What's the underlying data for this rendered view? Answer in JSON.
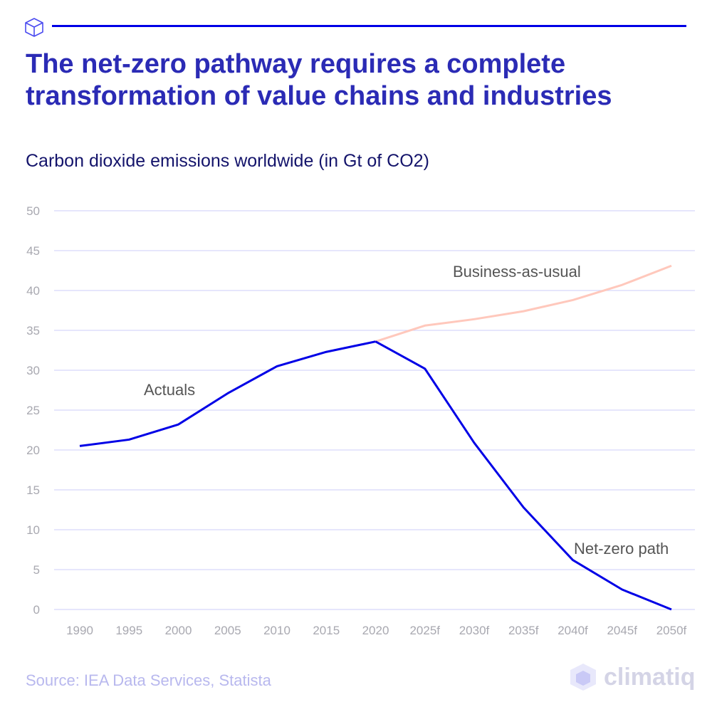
{
  "header": {
    "title": "The net-zero pathway requires a complete transformation of value chains and industries",
    "subtitle": "Carbon dioxide emissions worldwide (in Gt of CO2)",
    "icon": "cube-icon"
  },
  "footer": {
    "source": "Source: IEA Data Services, Statista",
    "logo_text": "climatiq"
  },
  "chart_data": {
    "type": "line",
    "title": "Carbon dioxide emissions worldwide (in Gt of CO2)",
    "categories": [
      "1990",
      "1995",
      "2000",
      "2005",
      "2010",
      "2015",
      "2020",
      "2025f",
      "2030f",
      "2035f",
      "2040f",
      "2045f",
      "2050f"
    ],
    "ylim": [
      0,
      50
    ],
    "yticks": [
      0,
      5,
      10,
      15,
      20,
      25,
      30,
      35,
      40,
      45,
      50
    ],
    "grid": true,
    "series": [
      {
        "name": "Actuals",
        "color": "#0000e6",
        "values": [
          20.5,
          21.3,
          23.2,
          27.1,
          30.5,
          32.3,
          33.6,
          null,
          null,
          null,
          null,
          null,
          null
        ]
      },
      {
        "name": "Net-zero path",
        "color": "#0000e6",
        "values": [
          null,
          null,
          null,
          null,
          null,
          null,
          33.6,
          30.2,
          20.9,
          12.8,
          6.2,
          2.5,
          0
        ]
      },
      {
        "name": "Business-as-usual",
        "color": "#ffc8bc",
        "values": [
          null,
          null,
          null,
          null,
          null,
          null,
          33.6,
          35.6,
          36.4,
          37.4,
          38.8,
          40.7,
          43.1
        ]
      }
    ]
  }
}
